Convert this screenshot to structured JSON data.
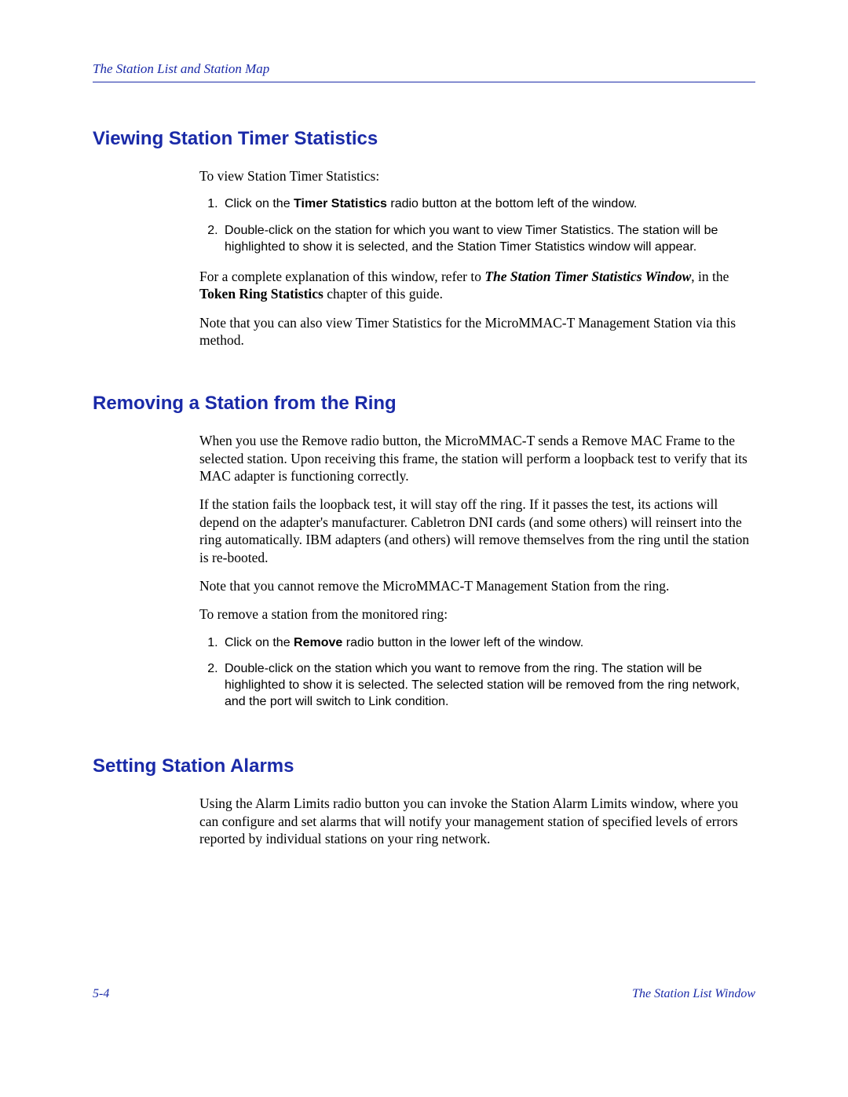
{
  "colors": {
    "accent": "#1a2aa8",
    "text": "#000000",
    "background": "#ffffff"
  },
  "typography": {
    "serif_family": "Book Antiqua / Palatino",
    "sans_family": "Arial / Helvetica",
    "heading_size_pt": 18,
    "body_size_pt": 13,
    "step_size_pt": 12
  },
  "running_head": "The Station List and Station Map",
  "sections": [
    {
      "heading": "Viewing Station Timer Statistics",
      "intro": "To view Station Timer Statistics:",
      "steps": [
        {
          "pre": "Click on the ",
          "bold": "Timer Statistics",
          "post": " radio button at the bottom left of the window."
        },
        {
          "text": "Double-click on the station for which you want to view Timer Statistics. The station will be highlighted to show it is selected, and the Station Timer Statistics window will appear."
        }
      ],
      "paras": [
        {
          "pre": "For a complete explanation of this window, refer to ",
          "ib": "The Station Timer Statistics Window",
          "mid": ", in the ",
          "bold": "Token Ring Statistics",
          "post": " chapter of this guide."
        },
        {
          "text": "Note that you can also view Timer Statistics for the MicroMMAC-T Management Station via this method."
        }
      ]
    },
    {
      "heading": "Removing a Station from the Ring",
      "paras_top": [
        "When you use the Remove radio button, the MicroMMAC-T sends a Remove MAC Frame to the selected station. Upon receiving this frame, the station will perform a loopback test to verify that its MAC adapter is functioning correctly.",
        "If the station fails the loopback test, it will stay off the ring. If it passes the test, its actions will depend on the adapter's manufacturer. Cabletron DNI cards (and some others) will reinsert into the ring automatically. IBM adapters (and others) will remove themselves from the ring until the station is re-booted.",
        "Note that you cannot remove the MicroMMAC-T Management Station from the ring.",
        "To remove a station from the monitored ring:"
      ],
      "steps": [
        {
          "pre": "Click on the ",
          "bold": "Remove",
          "post": " radio button in the lower left of the window."
        },
        {
          "text": "Double-click on the station which you want to remove from the ring. The station will be highlighted to show it is selected. The selected station will be removed from the ring network, and the port will switch to Link condition."
        }
      ]
    },
    {
      "heading": "Setting Station Alarms",
      "paras_top": [
        "Using the Alarm Limits radio button you can invoke the Station Alarm Limits window, where you can configure and set alarms that will notify your management station of specified levels of errors reported by individual stations on your ring network."
      ]
    }
  ],
  "footer": {
    "left": "5-4",
    "right": "The Station List Window"
  }
}
